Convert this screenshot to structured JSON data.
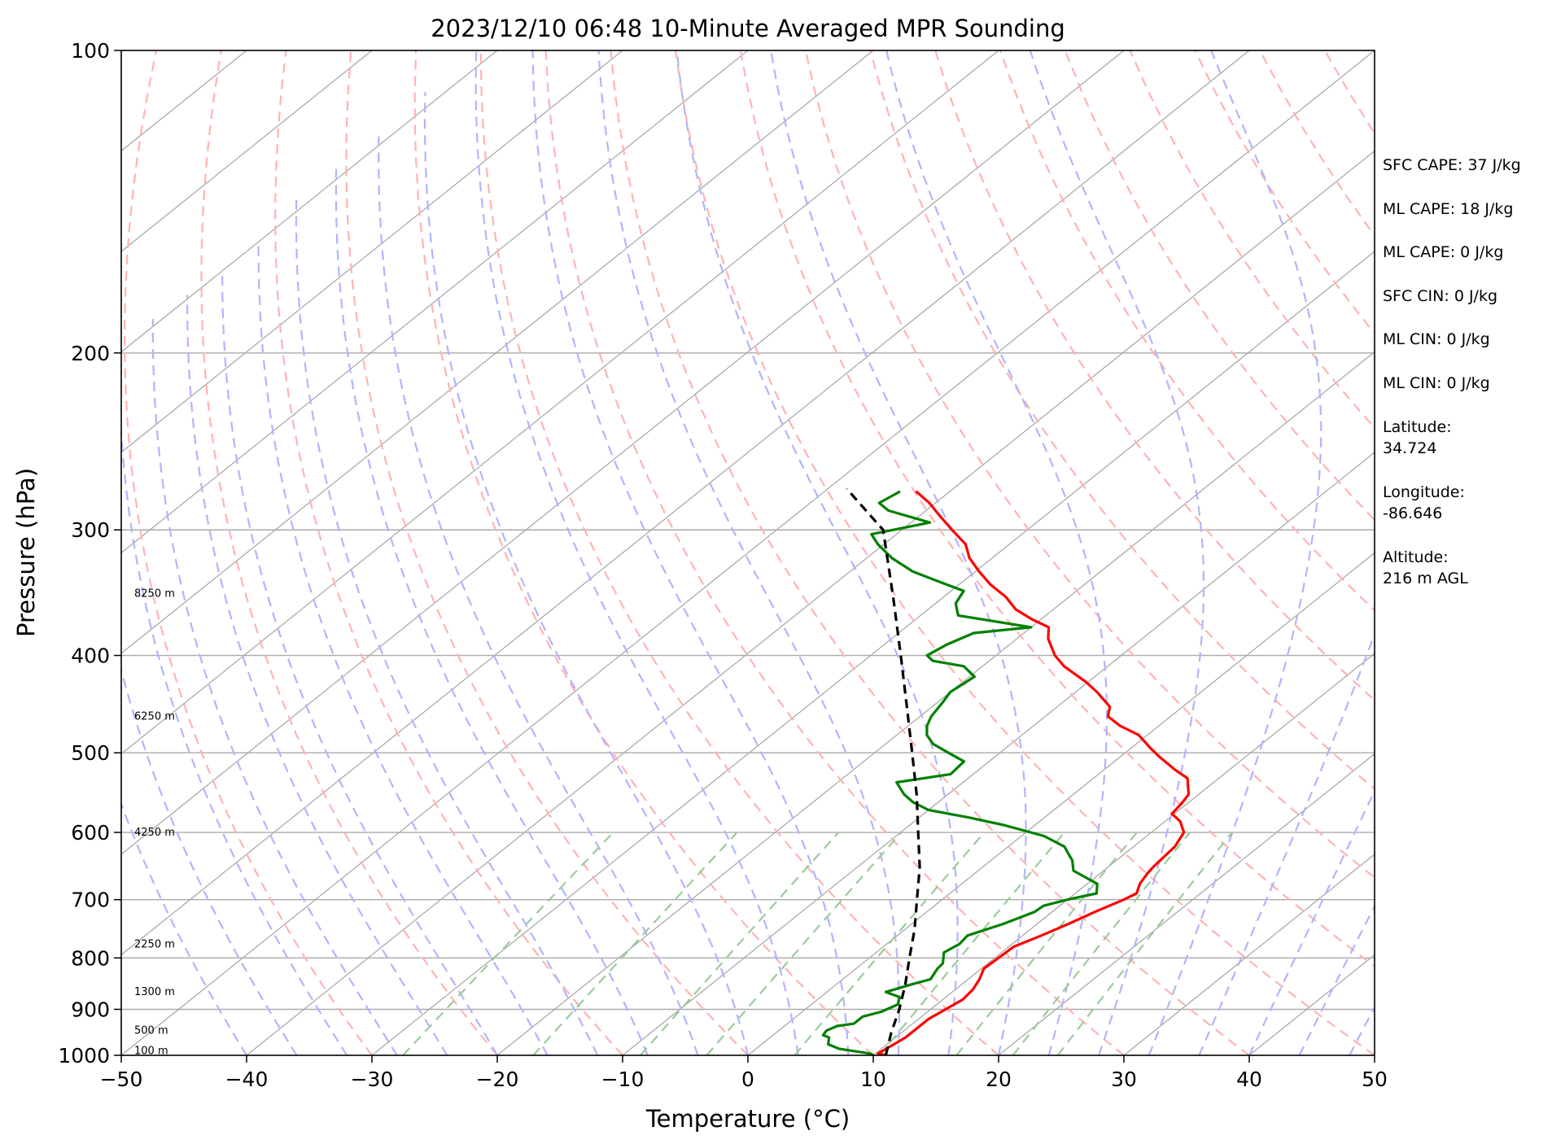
{
  "chart_data": {
    "type": "skew-t",
    "title": "2023/12/10 06:48 10-Minute Averaged MPR Sounding",
    "xlabel": "Temperature (°C)",
    "ylabel": "Pressure (hPa)",
    "xlim": [
      -50,
      50
    ],
    "ylim": [
      1000,
      100
    ],
    "y_scale": "log",
    "grid": true,
    "x_ticks": [
      "−50",
      "−40",
      "−30",
      "−20",
      "−10",
      "0",
      "10",
      "20",
      "30",
      "40",
      "50"
    ],
    "x_tick_values": [
      -50,
      -40,
      -30,
      -20,
      -10,
      0,
      10,
      20,
      30,
      40,
      50
    ],
    "y_ticks": [
      "100",
      "200",
      "300",
      "400",
      "500",
      "600",
      "700",
      "800",
      "900",
      "1000"
    ],
    "y_tick_values": [
      100,
      200,
      300,
      400,
      500,
      600,
      700,
      800,
      900,
      1000
    ],
    "height_labels": [
      {
        "text": "100 m",
        "p": 990
      },
      {
        "text": "500 m",
        "p": 945
      },
      {
        "text": "1300 m",
        "p": 865
      },
      {
        "text": "2250 m",
        "p": 775
      },
      {
        "text": "4250 m",
        "p": 600
      },
      {
        "text": "6250 m",
        "p": 460
      },
      {
        "text": "8250 m",
        "p": 347
      }
    ],
    "series": [
      {
        "color": "#ff0000",
        "points": [
          [
            11,
            1000
          ],
          [
            10.2,
            996
          ],
          [
            10.8,
            960
          ],
          [
            10.8,
            920
          ],
          [
            11.6,
            880
          ],
          [
            11.4,
            860
          ],
          [
            10.9,
            840
          ],
          [
            10.2,
            820
          ],
          [
            10.3,
            800
          ],
          [
            10.4,
            780
          ],
          [
            11.5,
            760
          ],
          [
            12.5,
            740
          ],
          [
            13.4,
            720
          ],
          [
            14.5,
            700
          ],
          [
            14.9,
            690
          ],
          [
            14.2,
            675
          ],
          [
            13.8,
            660
          ],
          [
            13.6,
            650
          ],
          [
            13.5,
            640
          ],
          [
            13.3,
            620
          ],
          [
            12.6,
            600
          ],
          [
            11.2,
            585
          ],
          [
            9.8,
            575
          ],
          [
            9.5,
            560
          ],
          [
            9.2,
            550
          ],
          [
            7.5,
            530
          ],
          [
            5.7,
            520
          ],
          [
            3.2,
            505
          ],
          [
            1.6,
            495
          ],
          [
            -0.7,
            480
          ],
          [
            -3.1,
            470
          ],
          [
            -5.0,
            460
          ],
          [
            -5.8,
            450
          ],
          [
            -8.3,
            435
          ],
          [
            -10.2,
            425
          ],
          [
            -13.5,
            410
          ],
          [
            -15.3,
            400
          ],
          [
            -17.5,
            385
          ],
          [
            -18.6,
            375
          ],
          [
            -20.8,
            368
          ],
          [
            -23.0,
            360
          ],
          [
            -25.0,
            350
          ],
          [
            -27.5,
            340
          ],
          [
            -29.7,
            330
          ],
          [
            -31.8,
            320
          ],
          [
            -33.5,
            310
          ],
          [
            -36.0,
            300
          ],
          [
            -38.5,
            290
          ],
          [
            -40.5,
            282
          ],
          [
            -42.6,
            275
          ]
        ]
      },
      {
        "color": "#008000",
        "points": [
          [
            10,
            1000
          ],
          [
            9.6,
            996
          ],
          [
            6.6,
            985
          ],
          [
            5.3,
            975
          ],
          [
            4.7,
            960
          ],
          [
            4.0,
            955
          ],
          [
            3.8,
            945
          ],
          [
            4.2,
            935
          ],
          [
            5.3,
            930
          ],
          [
            5.3,
            915
          ],
          [
            6.3,
            905
          ],
          [
            6.9,
            890
          ],
          [
            6.3,
            875
          ],
          [
            4.7,
            865
          ],
          [
            6.0,
            850
          ],
          [
            7.0,
            840
          ],
          [
            6.5,
            820
          ],
          [
            6.4,
            810
          ],
          [
            5.4,
            790
          ],
          [
            5.8,
            775
          ],
          [
            5.6,
            760
          ],
          [
            7.3,
            740
          ],
          [
            8.6,
            720
          ],
          [
            8.7,
            710
          ],
          [
            10.0,
            700
          ],
          [
            11.7,
            690
          ],
          [
            10.8,
            675
          ],
          [
            7.6,
            655
          ],
          [
            6.5,
            640
          ],
          [
            5.5,
            630
          ],
          [
            4.5,
            620
          ],
          [
            1.8,
            605
          ],
          [
            -2.5,
            590
          ],
          [
            -6.0,
            580
          ],
          [
            -10.0,
            570
          ],
          [
            -12.0,
            560
          ],
          [
            -13.5,
            550
          ],
          [
            -15.3,
            535
          ],
          [
            -11.8,
            525
          ],
          [
            -12.0,
            510
          ],
          [
            -14.1,
            500
          ],
          [
            -16.2,
            490
          ],
          [
            -17.6,
            480
          ],
          [
            -18.5,
            470
          ],
          [
            -19.1,
            460
          ],
          [
            -19.6,
            445
          ],
          [
            -20.0,
            435
          ],
          [
            -19.6,
            420
          ],
          [
            -21.5,
            410
          ],
          [
            -24.5,
            405
          ],
          [
            -25.5,
            400
          ],
          [
            -25.0,
            390
          ],
          [
            -24.0,
            380
          ],
          [
            -20.0,
            375
          ],
          [
            -27.0,
            365
          ],
          [
            -28.4,
            355
          ],
          [
            -29.0,
            345
          ],
          [
            -31.0,
            340
          ],
          [
            -35.0,
            330
          ],
          [
            -38.0,
            320
          ],
          [
            -40.5,
            310
          ],
          [
            -42.0,
            303
          ],
          [
            -38.5,
            295
          ],
          [
            -43.0,
            287
          ],
          [
            -44.5,
            282
          ],
          [
            -44.0,
            275
          ]
        ]
      },
      {
        "color": "#000000",
        "dashed": true,
        "points": [
          [
            11,
            1000
          ],
          [
            9.2,
            950
          ],
          [
            7.5,
            900
          ],
          [
            5.5,
            850
          ],
          [
            3.2,
            800
          ],
          [
            0.8,
            750
          ],
          [
            -2.0,
            700
          ],
          [
            -5.0,
            650
          ],
          [
            -8.6,
            600
          ],
          [
            -12.5,
            550
          ],
          [
            -17.0,
            500
          ],
          [
            -22.0,
            450
          ],
          [
            -27.6,
            400
          ],
          [
            -34.0,
            350
          ],
          [
            -41.5,
            300
          ],
          [
            -48.5,
            273
          ]
        ]
      }
    ]
  },
  "info_panel": {
    "sfc_cape": "SFC CAPE: 37 J/kg",
    "ml_cape_1": "ML CAPE: 18 J/kg",
    "ml_cape_2": "ML CAPE: 0 J/kg",
    "sfc_cin": "SFC CIN: 0 J/kg",
    "ml_cin_1": "ML CIN: 0 J/kg",
    "ml_cin_2": "ML CIN: 0 J/kg",
    "lat_label": "Latitude:",
    "lat_value": "34.724",
    "lon_label": "Longitude:",
    "lon_value": "-86.646",
    "alt_label": "Altitude:",
    "alt_value": "216 m AGL"
  },
  "colors": {
    "temperature": "#ff0000",
    "dewpoint": "#008000",
    "parcel": "#000000",
    "isotherm": "#aaaaaa",
    "dry_adiabat": "#ffb3b3",
    "moist_adiabat": "#b3b3ff",
    "mixing_ratio": "#99cc99"
  }
}
